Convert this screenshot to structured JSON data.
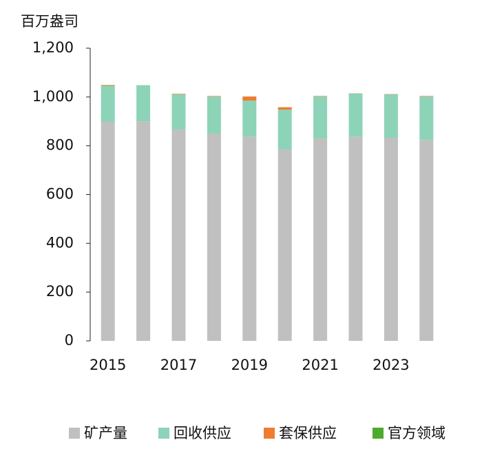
{
  "chart_data": {
    "type": "stacked_bar",
    "ylabel": "百万盎司",
    "categories": [
      "2015",
      null,
      "2017",
      null,
      "2019",
      null,
      "2021",
      null,
      "2023",
      null
    ],
    "series": [
      {
        "name": "矿产量",
        "color": "#c0c0c0",
        "values": [
          898,
          900,
          867,
          850,
          838,
          785,
          830,
          838,
          833,
          824
        ]
      },
      {
        "name": "回收供应",
        "color": "#8dd3b8",
        "values": [
          147,
          147,
          144,
          152,
          147,
          163,
          172,
          176,
          178,
          178
        ]
      },
      {
        "name": "套保供应",
        "color": "#ed7d31",
        "values": [
          3,
          0,
          2,
          2,
          17,
          10,
          2,
          1,
          1,
          2
        ]
      },
      {
        "name": "官方领域",
        "color": "#4eaa2e",
        "values": [
          1,
          1,
          0,
          0,
          0,
          0,
          0,
          0,
          0,
          0
        ]
      }
    ],
    "ylim": [
      0,
      1200
    ],
    "yticks": [
      0,
      200,
      400,
      600,
      800,
      {
        "value": 1000,
        "label": "1,000"
      },
      {
        "value": 1200,
        "label": "1,200"
      }
    ]
  }
}
